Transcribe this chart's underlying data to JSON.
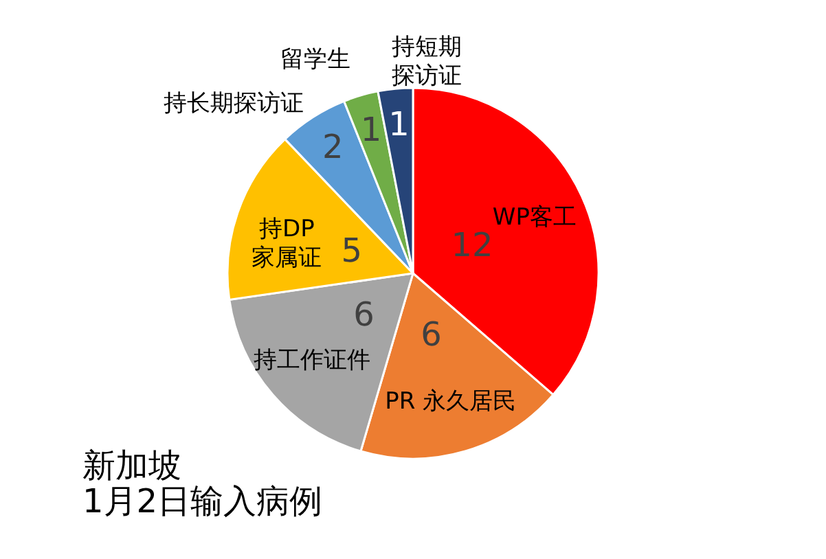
{
  "chart_data": {
    "type": "pie",
    "title": "新加坡",
    "subtitle": "1月2日输入病例",
    "categories": [
      "WP客工",
      "PR 永久居民",
      "持工作证件",
      "持DP家属证",
      "持长期探访证",
      "留学生",
      "持短期探访证"
    ],
    "values": [
      12,
      6,
      6,
      5,
      2,
      1,
      1
    ],
    "colors": [
      "#ff0000",
      "#ed7d31",
      "#a5a5a5",
      "#ffc000",
      "#5b9bd5",
      "#70ad47",
      "#264478"
    ],
    "data_labels": true,
    "legend": false
  }
}
